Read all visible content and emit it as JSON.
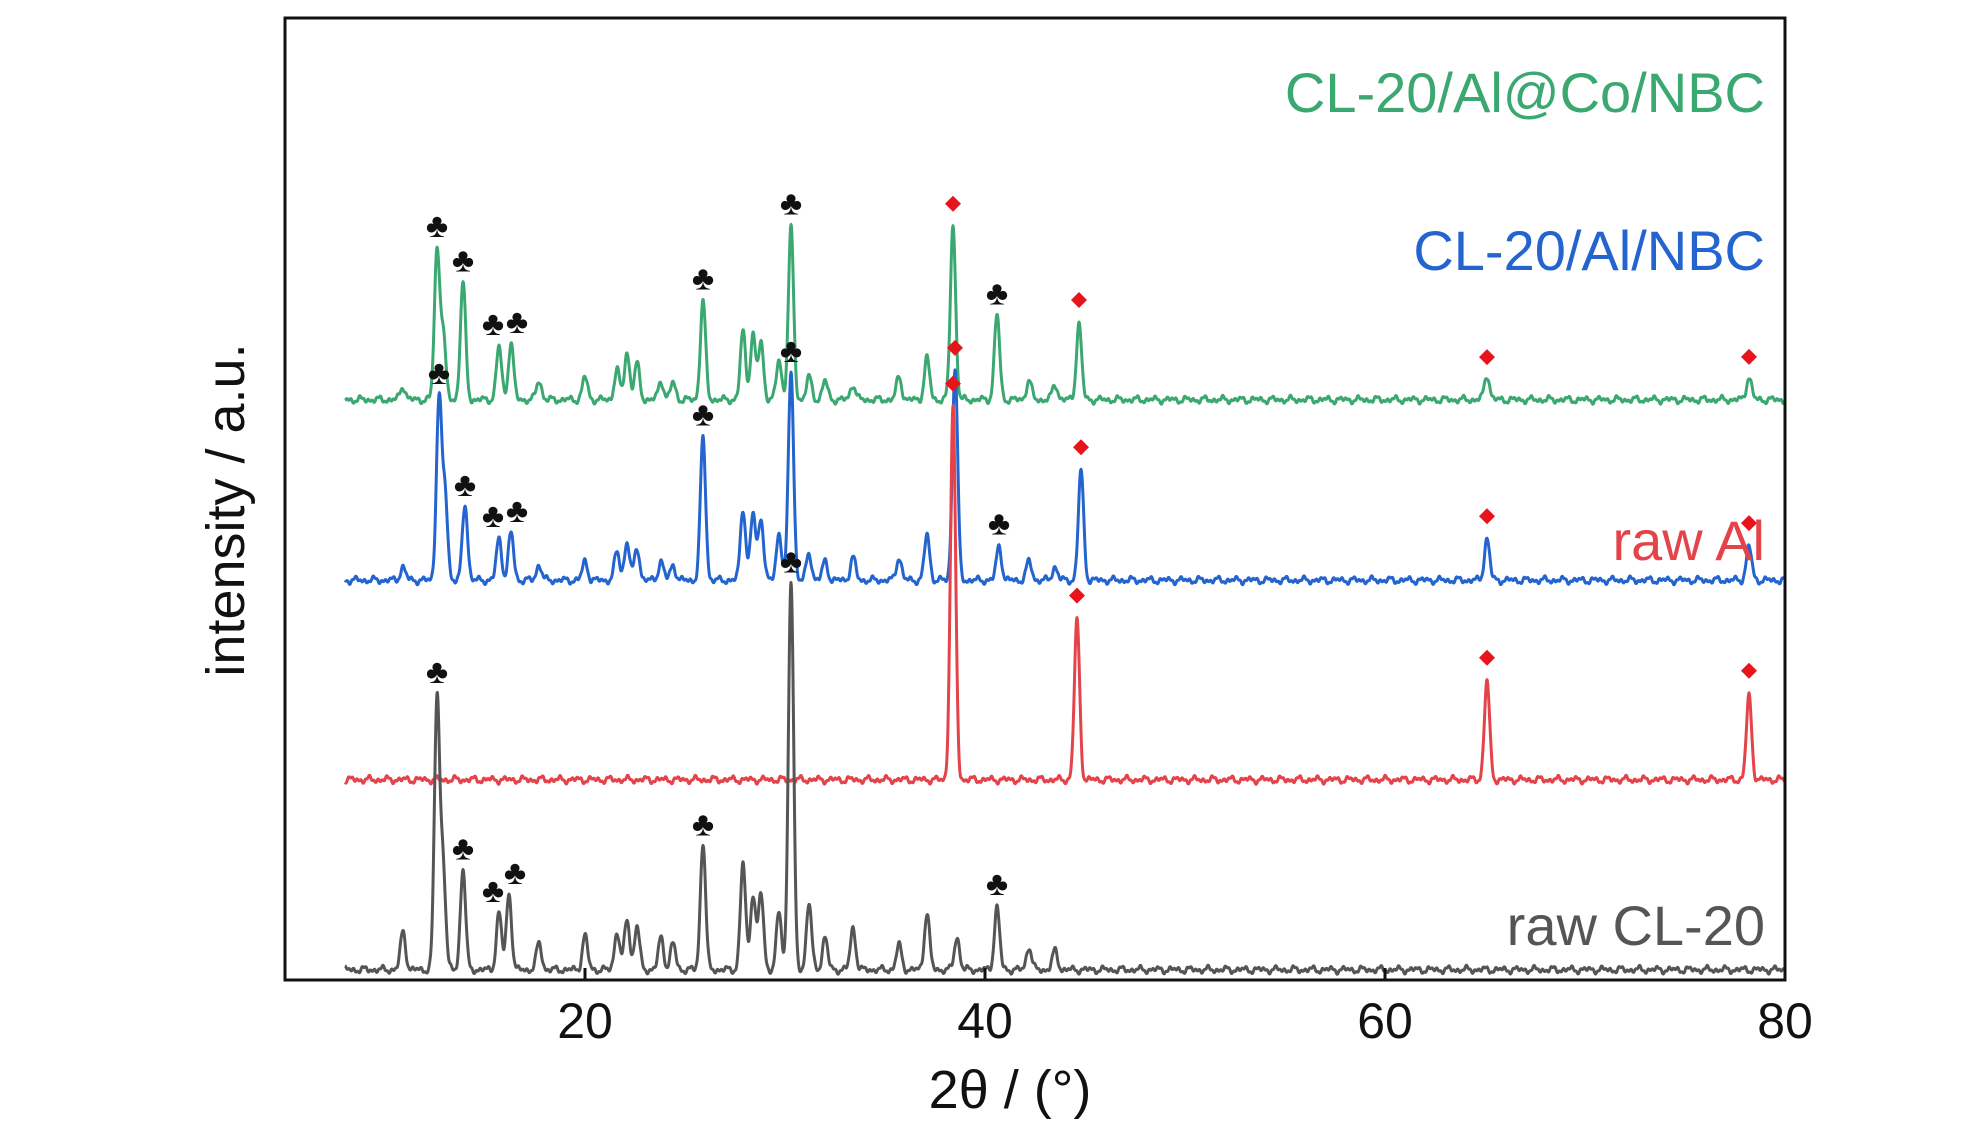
{
  "chart_data": {
    "type": "line",
    "title": "",
    "xlabel": "2θ / (°)",
    "ylabel": "intensity / a.u.",
    "xlim": [
      5,
      80
    ],
    "x_ticks": [
      "20",
      "40",
      "60",
      "80"
    ],
    "y_ticks": [],
    "grid": false,
    "legend": "series names printed at the right end of each trace",
    "markers": {
      "club": {
        "symbol": "♣",
        "color": "#111111"
      },
      "diamond": {
        "symbol": "◆",
        "color": "#e8141b"
      }
    },
    "series": [
      {
        "name": "CL-20/Al@Co/NBC",
        "color": "#3aa870",
        "offset": 3.0,
        "peaks": [
          {
            "x": 10.9,
            "y": 0.07
          },
          {
            "x": 12.6,
            "y": 0.78
          },
          {
            "x": 12.9,
            "y": 0.35
          },
          {
            "x": 13.9,
            "y": 0.62
          },
          {
            "x": 15.7,
            "y": 0.28
          },
          {
            "x": 16.3,
            "y": 0.3
          },
          {
            "x": 17.7,
            "y": 0.1
          },
          {
            "x": 20.0,
            "y": 0.12
          },
          {
            "x": 21.6,
            "y": 0.16
          },
          {
            "x": 22.1,
            "y": 0.25
          },
          {
            "x": 22.6,
            "y": 0.19
          },
          {
            "x": 23.8,
            "y": 0.1
          },
          {
            "x": 24.4,
            "y": 0.09
          },
          {
            "x": 25.9,
            "y": 0.52
          },
          {
            "x": 27.9,
            "y": 0.36
          },
          {
            "x": 28.4,
            "y": 0.34
          },
          {
            "x": 28.8,
            "y": 0.3
          },
          {
            "x": 29.7,
            "y": 0.21
          },
          {
            "x": 30.3,
            "y": 0.9
          },
          {
            "x": 31.2,
            "y": 0.12
          },
          {
            "x": 32.0,
            "y": 0.1
          },
          {
            "x": 33.4,
            "y": 0.08
          },
          {
            "x": 35.7,
            "y": 0.12
          },
          {
            "x": 37.1,
            "y": 0.22
          },
          {
            "x": 38.4,
            "y": 0.92
          },
          {
            "x": 40.6,
            "y": 0.45
          },
          {
            "x": 42.2,
            "y": 0.1
          },
          {
            "x": 43.5,
            "y": 0.08
          },
          {
            "x": 44.7,
            "y": 0.4
          },
          {
            "x": 65.1,
            "y": 0.13
          },
          {
            "x": 78.2,
            "y": 0.12
          }
        ],
        "clubs": [
          12.6,
          13.9,
          15.7,
          16.3,
          25.9,
          30.3,
          40.6
        ],
        "diamonds": [
          38.4,
          44.7,
          65.1,
          78.2
        ]
      },
      {
        "name": "CL-20/Al/NBC",
        "color": "#2464cf",
        "offset": 2.05,
        "peaks": [
          {
            "x": 10.9,
            "y": 0.07
          },
          {
            "x": 12.7,
            "y": 0.95
          },
          {
            "x": 13.0,
            "y": 0.45
          },
          {
            "x": 14.0,
            "y": 0.4
          },
          {
            "x": 15.7,
            "y": 0.22
          },
          {
            "x": 16.3,
            "y": 0.25
          },
          {
            "x": 17.7,
            "y": 0.08
          },
          {
            "x": 20.0,
            "y": 0.1
          },
          {
            "x": 21.6,
            "y": 0.15
          },
          {
            "x": 22.1,
            "y": 0.2
          },
          {
            "x": 22.6,
            "y": 0.17
          },
          {
            "x": 23.8,
            "y": 0.1
          },
          {
            "x": 24.4,
            "y": 0.08
          },
          {
            "x": 25.9,
            "y": 0.75
          },
          {
            "x": 27.9,
            "y": 0.38
          },
          {
            "x": 28.4,
            "y": 0.35
          },
          {
            "x": 28.8,
            "y": 0.33
          },
          {
            "x": 29.7,
            "y": 0.25
          },
          {
            "x": 30.3,
            "y": 1.1
          },
          {
            "x": 31.2,
            "y": 0.14
          },
          {
            "x": 32.0,
            "y": 0.1
          },
          {
            "x": 33.4,
            "y": 0.12
          },
          {
            "x": 35.7,
            "y": 0.12
          },
          {
            "x": 37.1,
            "y": 0.24
          },
          {
            "x": 38.5,
            "y": 1.12
          },
          {
            "x": 40.7,
            "y": 0.18
          },
          {
            "x": 42.2,
            "y": 0.1
          },
          {
            "x": 43.5,
            "y": 0.07
          },
          {
            "x": 44.8,
            "y": 0.58
          },
          {
            "x": 65.1,
            "y": 0.22
          },
          {
            "x": 78.2,
            "y": 0.18
          }
        ],
        "clubs": [
          12.7,
          14.0,
          15.7,
          16.3,
          25.9,
          30.3,
          40.7
        ],
        "diamonds": [
          38.5,
          44.8,
          65.1,
          78.2
        ]
      },
      {
        "name": "raw Al",
        "color": "#e4434a",
        "offset": 1.0,
        "peaks": [
          {
            "x": 38.4,
            "y": 1.95
          },
          {
            "x": 44.6,
            "y": 0.84
          },
          {
            "x": 65.1,
            "y": 0.52
          },
          {
            "x": 78.2,
            "y": 0.44
          }
        ],
        "clubs": [],
        "diamonds": [
          38.4,
          44.6,
          65.1,
          78.2
        ]
      },
      {
        "name": "raw CL-20",
        "color": "#555555",
        "offset": 0.0,
        "peaks": [
          {
            "x": 10.9,
            "y": 0.2
          },
          {
            "x": 12.6,
            "y": 1.42
          },
          {
            "x": 12.9,
            "y": 0.55
          },
          {
            "x": 13.9,
            "y": 0.53
          },
          {
            "x": 15.7,
            "y": 0.3
          },
          {
            "x": 16.2,
            "y": 0.4
          },
          {
            "x": 17.7,
            "y": 0.14
          },
          {
            "x": 20.0,
            "y": 0.18
          },
          {
            "x": 21.6,
            "y": 0.2
          },
          {
            "x": 22.1,
            "y": 0.27
          },
          {
            "x": 22.6,
            "y": 0.23
          },
          {
            "x": 23.8,
            "y": 0.17
          },
          {
            "x": 24.4,
            "y": 0.14
          },
          {
            "x": 25.9,
            "y": 0.67
          },
          {
            "x": 27.9,
            "y": 0.56
          },
          {
            "x": 28.4,
            "y": 0.4
          },
          {
            "x": 28.8,
            "y": 0.4
          },
          {
            "x": 29.7,
            "y": 0.3
          },
          {
            "x": 30.3,
            "y": 2.05
          },
          {
            "x": 31.2,
            "y": 0.35
          },
          {
            "x": 32.0,
            "y": 0.17
          },
          {
            "x": 33.4,
            "y": 0.22
          },
          {
            "x": 35.7,
            "y": 0.13
          },
          {
            "x": 37.1,
            "y": 0.3
          },
          {
            "x": 38.6,
            "y": 0.17
          },
          {
            "x": 40.6,
            "y": 0.33
          },
          {
            "x": 42.2,
            "y": 0.12
          },
          {
            "x": 43.5,
            "y": 0.1
          }
        ],
        "clubs": [
          12.6,
          13.9,
          15.7,
          16.2,
          25.9,
          30.3,
          40.6
        ],
        "diamonds": []
      }
    ]
  }
}
